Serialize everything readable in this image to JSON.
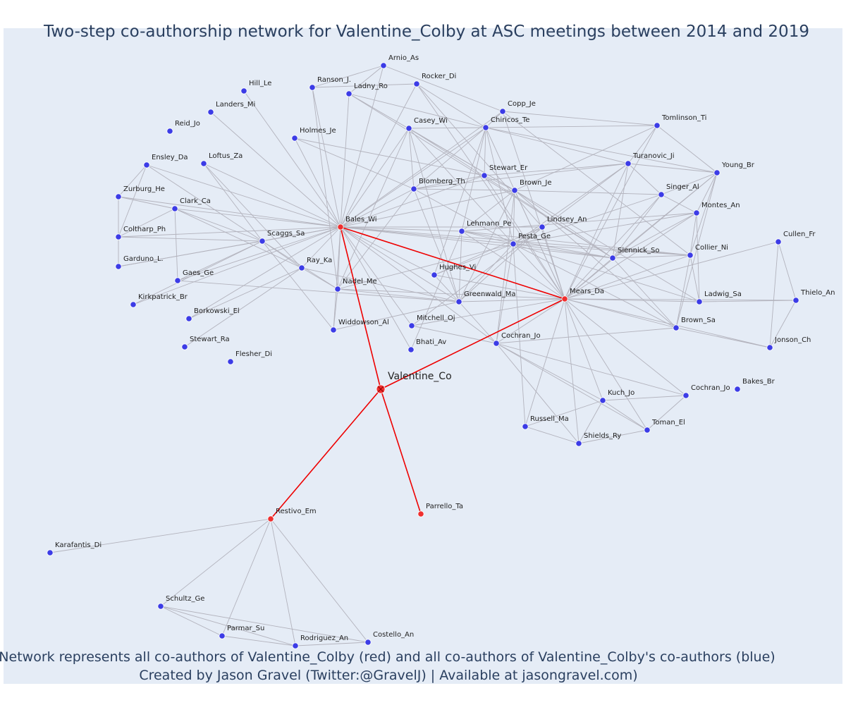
{
  "title": "Two-step co-authorship network for Valentine_Colby at ASC meetings between 2014 and 2019",
  "caption_line1": "Network represents all co-authors of Valentine_Colby (red) and all co-authors of Valentine_Colby's co-authors (blue)",
  "caption_line2": "Created by Jason Gravel (Twitter:@GravelJ) | Available at jasongravel.com)",
  "colors": {
    "background": "#e5ecf6",
    "red": "#ef2f2f",
    "blue": "#3c3ce6",
    "edge": "#b3b3bd",
    "red_edge": "#ee0000"
  },
  "nodes": [
    {
      "id": "Valentine_Co",
      "label": "Valentine_Co",
      "group": "ego"
    },
    {
      "id": "Bales_Wi",
      "label": "Bales_Wi",
      "group": "red"
    },
    {
      "id": "Mears_Da",
      "label": "Mears_Da",
      "group": "red"
    },
    {
      "id": "Restivo_Em",
      "label": "Restivo_Em",
      "group": "red"
    },
    {
      "id": "Parrello_Ta",
      "label": "Parrello_Ta",
      "group": "red"
    },
    {
      "id": "Arnio_As",
      "label": "Arnio_As",
      "group": "blue"
    },
    {
      "id": "Rocker_Di",
      "label": "Rocker_Di",
      "group": "blue"
    },
    {
      "id": "Ranson_J",
      "label": "Ranson_J.",
      "group": "blue"
    },
    {
      "id": "Ladny_Ro",
      "label": "Ladny_Ro",
      "group": "blue"
    },
    {
      "id": "Hill_Le",
      "label": "Hill_Le",
      "group": "blue"
    },
    {
      "id": "Landers_Mi",
      "label": "Landers_Mi",
      "group": "blue"
    },
    {
      "id": "Copp_Je",
      "label": "Copp_Je",
      "group": "blue"
    },
    {
      "id": "Chiricos_Te",
      "label": "Chiricos_Te",
      "group": "blue"
    },
    {
      "id": "Casey_Wi",
      "label": "Casey_Wi",
      "group": "blue"
    },
    {
      "id": "Tomlinson_Ti",
      "label": "Tomlinson_Ti",
      "group": "blue"
    },
    {
      "id": "Reid_Jo",
      "label": "Reid_Jo",
      "group": "blue"
    },
    {
      "id": "Holmes_Je",
      "label": "Holmes_Je",
      "group": "blue"
    },
    {
      "id": "Ensley_Da",
      "label": "Ensley_Da",
      "group": "blue"
    },
    {
      "id": "Loftus_Za",
      "label": "Loftus_Za",
      "group": "blue"
    },
    {
      "id": "Turanovic_Ji",
      "label": "Turanovic_Ji",
      "group": "blue"
    },
    {
      "id": "Stewart_Er",
      "label": "Stewart_Er",
      "group": "blue"
    },
    {
      "id": "Young_Br",
      "label": "Young_Br",
      "group": "blue"
    },
    {
      "id": "Zurburg_He",
      "label": "Zurburg_He",
      "group": "blue"
    },
    {
      "id": "Blomberg_Th",
      "label": "Blomberg_Th",
      "group": "blue"
    },
    {
      "id": "Brown_Je",
      "label": "Brown_Je",
      "group": "blue"
    },
    {
      "id": "Singer_Al",
      "label": "Singer_Al",
      "group": "blue"
    },
    {
      "id": "Clark_Ca",
      "label": "Clark_Ca",
      "group": "blue"
    },
    {
      "id": "Montes_An",
      "label": "Montes_An",
      "group": "blue"
    },
    {
      "id": "Lindsey_An",
      "label": "Lindsey_An",
      "group": "blue"
    },
    {
      "id": "Coltharp_Ph",
      "label": "Coltharp_Ph",
      "group": "blue"
    },
    {
      "id": "Scaggs_Sa",
      "label": "Scaggs_Sa",
      "group": "blue"
    },
    {
      "id": "Lehmann_Pe",
      "label": "Lehmann_Pe",
      "group": "blue"
    },
    {
      "id": "Pesta_Ge",
      "label": "Pesta_Ge",
      "group": "blue"
    },
    {
      "id": "Cullen_Fr",
      "label": "Cullen_Fr",
      "group": "blue"
    },
    {
      "id": "Garduno_L",
      "label": "Garduno_L.",
      "group": "blue"
    },
    {
      "id": "Siennick_So",
      "label": "Siennick_So",
      "group": "blue"
    },
    {
      "id": "Collier_Ni",
      "label": "Collier_Ni",
      "group": "blue"
    },
    {
      "id": "Ray_Ka",
      "label": "Ray_Ka",
      "group": "blue"
    },
    {
      "id": "Gaes_Ge",
      "label": "Gaes_Ge",
      "group": "blue"
    },
    {
      "id": "Hughes_Vi",
      "label": "Hughes_Vi",
      "group": "blue"
    },
    {
      "id": "Nadel_Me",
      "label": "Nadel_Me",
      "group": "blue"
    },
    {
      "id": "Kirkpatrick_Br",
      "label": "Kirkpatrick_Br",
      "group": "blue"
    },
    {
      "id": "Ladwig_Sa",
      "label": "Ladwig_Sa",
      "group": "blue"
    },
    {
      "id": "Thielo_An",
      "label": "Thielo_An",
      "group": "blue"
    },
    {
      "id": "Greenwald_Ma",
      "label": "Greenwald_Ma",
      "group": "blue"
    },
    {
      "id": "Borkowski_El",
      "label": "Borkowski_El",
      "group": "blue"
    },
    {
      "id": "Mitchell_Oj",
      "label": "Mitchell_Oj",
      "group": "blue"
    },
    {
      "id": "Widdowson_Al",
      "label": "Widdowson_Al",
      "group": "blue"
    },
    {
      "id": "Brown_Sa",
      "label": "Brown_Sa",
      "group": "blue"
    },
    {
      "id": "Stewart_Ra",
      "label": "Stewart_Ra",
      "group": "blue"
    },
    {
      "id": "Cochran_Jo",
      "label": "Cochran_Jo",
      "group": "blue"
    },
    {
      "id": "Bhati_Av",
      "label": "Bhati_Av",
      "group": "blue"
    },
    {
      "id": "Jonson_Ch",
      "label": "Jonson_Ch",
      "group": "blue"
    },
    {
      "id": "Flesher_Di",
      "label": "Flesher_Di",
      "group": "blue"
    },
    {
      "id": "Bakes_Br",
      "label": "Bakes_Br",
      "group": "blue"
    },
    {
      "id": "Cochran_Jo2",
      "label": "Cochran_Jo",
      "group": "blue"
    },
    {
      "id": "Kuch_Jo",
      "label": "Kuch_Jo",
      "group": "blue"
    },
    {
      "id": "Russell_Ma",
      "label": "Russell_Ma",
      "group": "blue"
    },
    {
      "id": "Toman_El",
      "label": "Toman_El",
      "group": "blue"
    },
    {
      "id": "Shields_Ry",
      "label": "Shields_Ry",
      "group": "blue"
    },
    {
      "id": "Karafantis_Di",
      "label": "Karafantis_Di",
      "group": "blue"
    },
    {
      "id": "Schultz_Ge",
      "label": "Schultz_Ge",
      "group": "blue"
    },
    {
      "id": "Parmar_Su",
      "label": "Parmar_Su",
      "group": "blue"
    },
    {
      "id": "Rodriguez_An",
      "label": "Rodriguez_An",
      "group": "blue"
    },
    {
      "id": "Costello_An",
      "label": "Costello_An",
      "group": "blue"
    }
  ]
}
